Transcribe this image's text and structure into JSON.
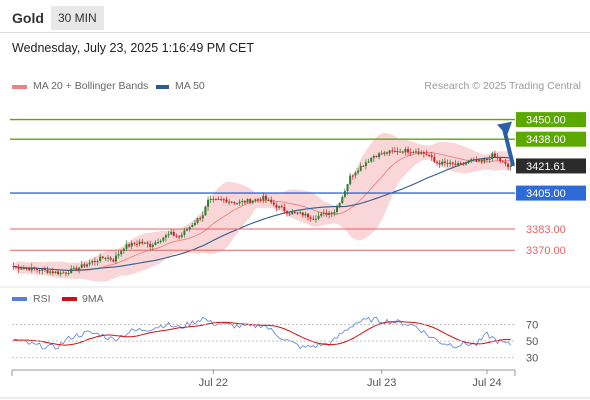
{
  "header": {
    "instrument": "Gold",
    "timeframe": "30 MIN",
    "datetime": "Wednesday, July 23, 2025 1:16:49 PM CET",
    "credit": "Research © 2025 Trading Central"
  },
  "colors": {
    "up_candle": "#2e7d32",
    "down_candle": "#c62828",
    "bollinger_band": "#f7c8cb",
    "ma20": "#f08080",
    "ma50": "#2f5a8f",
    "resistance": "#5aa800",
    "pivot": "#2f6bd8",
    "support": "#e46464",
    "rsi": "#5b7fd6",
    "rsi_ma": "#d01010",
    "arrow": "#2c5fa8"
  },
  "chart_data": [
    {
      "type": "candlestick",
      "series": [
        {
          "name": "MA 20 + Bollinger Bands"
        },
        {
          "name": "MA 50"
        }
      ],
      "x_ticks": [
        "Jul 22",
        "Jul 23",
        "Jul 24"
      ],
      "ylim": [
        3353,
        3462
      ],
      "levels": [
        {
          "label": "3450.00",
          "value": 3450.0,
          "kind": "resistance"
        },
        {
          "label": "3438.00",
          "value": 3438.0,
          "kind": "resistance"
        },
        {
          "label": "3405.00",
          "value": 3405.0,
          "kind": "pivot"
        },
        {
          "label": "3383.00",
          "value": 3383.0,
          "kind": "support"
        },
        {
          "label": "3370.00",
          "value": 3370.0,
          "kind": "support"
        }
      ],
      "last_price": {
        "label": "3421.61",
        "value": 3421.61
      },
      "anchors": [
        [
          0,
          3360
        ],
        [
          10,
          3358
        ],
        [
          18,
          3356
        ],
        [
          23,
          3358
        ],
        [
          30,
          3363
        ],
        [
          35,
          3366
        ],
        [
          38,
          3364
        ],
        [
          42,
          3372
        ],
        [
          48,
          3375
        ],
        [
          52,
          3373
        ],
        [
          57,
          3378
        ],
        [
          60,
          3380
        ],
        [
          63,
          3378
        ],
        [
          68,
          3386
        ],
        [
          72,
          3392
        ],
        [
          74,
          3400
        ],
        [
          80,
          3401
        ],
        [
          85,
          3399
        ],
        [
          92,
          3401
        ],
        [
          95,
          3402
        ],
        [
          100,
          3397
        ],
        [
          105,
          3393
        ],
        [
          110,
          3392
        ],
        [
          114,
          3390
        ],
        [
          118,
          3392
        ],
        [
          122,
          3394
        ],
        [
          125,
          3403
        ],
        [
          128,
          3415
        ],
        [
          131,
          3420
        ],
        [
          137,
          3428
        ],
        [
          143,
          3430
        ],
        [
          148,
          3431
        ],
        [
          153,
          3431
        ],
        [
          158,
          3428
        ],
        [
          160,
          3424
        ],
        [
          164,
          3423
        ],
        [
          170,
          3422
        ],
        [
          174,
          3425
        ],
        [
          178,
          3424
        ],
        [
          182,
          3428
        ],
        [
          184,
          3426
        ],
        [
          188,
          3421
        ]
      ]
    },
    {
      "type": "line",
      "series": [
        {
          "name": "RSI"
        },
        {
          "name": "9MA"
        }
      ],
      "y_ticks": [
        70,
        50,
        30
      ],
      "ylim": [
        20,
        85
      ],
      "rsi_anchors": [
        [
          0,
          52
        ],
        [
          8,
          45
        ],
        [
          16,
          42
        ],
        [
          22,
          55
        ],
        [
          28,
          60
        ],
        [
          33,
          58
        ],
        [
          38,
          52
        ],
        [
          45,
          62
        ],
        [
          52,
          65
        ],
        [
          58,
          70
        ],
        [
          63,
          66
        ],
        [
          68,
          72
        ],
        [
          72,
          78
        ],
        [
          75,
          72
        ],
        [
          80,
          70
        ],
        [
          85,
          68
        ],
        [
          90,
          67
        ],
        [
          95,
          70
        ],
        [
          100,
          58
        ],
        [
          105,
          49
        ],
        [
          110,
          42
        ],
        [
          116,
          45
        ],
        [
          121,
          48
        ],
        [
          125,
          60
        ],
        [
          130,
          72
        ],
        [
          136,
          76
        ],
        [
          142,
          74
        ],
        [
          148,
          72
        ],
        [
          153,
          68
        ],
        [
          158,
          56
        ],
        [
          163,
          48
        ],
        [
          168,
          45
        ],
        [
          172,
          47
        ],
        [
          176,
          46
        ],
        [
          180,
          58
        ],
        [
          184,
          50
        ],
        [
          188,
          46
        ]
      ]
    }
  ]
}
